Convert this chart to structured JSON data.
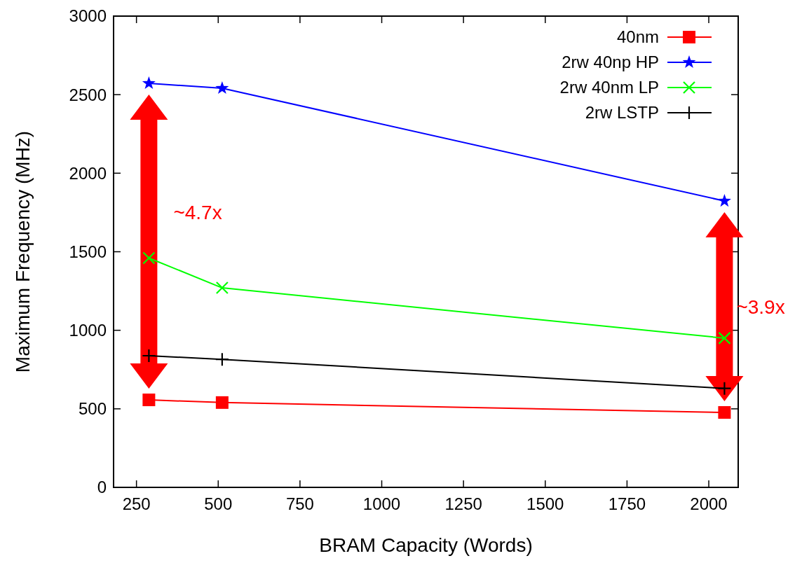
{
  "chart_data": {
    "type": "line",
    "xlabel": "BRAM Capacity (Words)",
    "ylabel": "Maximum Frequency (MHz)",
    "x": [
      288,
      512,
      2048
    ],
    "series": [
      {
        "name": "40nm",
        "color": "#ff0000",
        "marker": "square",
        "values": [
          557,
          540,
          477
        ]
      },
      {
        "name": "2rw 40np HP",
        "color": "#0000ff",
        "marker": "star",
        "values": [
          2572,
          2541,
          1823
        ]
      },
      {
        "name": "2rw 40nm LP",
        "color": "#00ff00",
        "marker": "cross",
        "values": [
          1460,
          1270,
          950
        ]
      },
      {
        "name": "2rw LSTP",
        "color": "#000000",
        "marker": "plus",
        "values": [
          838,
          815,
          630
        ]
      }
    ],
    "xlim": [
      180,
      2090
    ],
    "xticks": [
      250,
      500,
      750,
      1000,
      1250,
      1500,
      1750,
      2000
    ],
    "ylim": [
      0,
      3000
    ],
    "yticks": [
      0,
      500,
      1000,
      1500,
      2000,
      2500,
      3000
    ],
    "grid": false,
    "legend": "top right",
    "annotations": [
      "~4.7x",
      "~3.9x"
    ]
  }
}
